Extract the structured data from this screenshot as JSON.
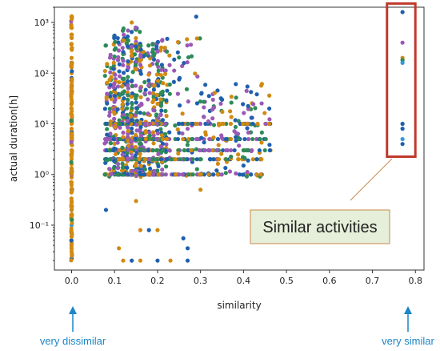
{
  "chart_data": {
    "type": "scatter",
    "xlabel": "similarity",
    "ylabel": "actual duration[h]",
    "xlim": [
      -0.04,
      0.82
    ],
    "ylim": [
      0.013,
      2000
    ],
    "yscale": "log",
    "grid": false,
    "x_ticks": [
      0.0,
      0.1,
      0.2,
      0.3,
      0.4,
      0.5,
      0.6,
      0.7,
      0.8
    ],
    "x_tick_labels": [
      "0.0",
      "0.1",
      "0.2",
      "0.3",
      "0.4",
      "0.5",
      "0.6",
      "0.7",
      "0.8"
    ],
    "y_ticks": [
      0.1,
      1,
      10,
      100,
      1000
    ],
    "y_tick_labels": [
      "10⁻¹",
      "10⁰",
      "10¹",
      "10²",
      "10³"
    ],
    "colors": [
      "#1f5fae",
      "#2e8b57",
      "#d18a12",
      "#9b59b6",
      "#c0392b",
      "#3498db",
      "#8b4513"
    ],
    "annotation": {
      "text": "Similar activities",
      "box_fill": "#e6efd9",
      "box_stroke": "#c8894a"
    },
    "highlight_box": {
      "x_range": [
        0.76,
        0.785
      ],
      "y_range": [
        2.6,
        2200
      ],
      "stroke": "#c0392b"
    },
    "left_label": "very dissimilar",
    "right_label": "very similar",
    "arrow_color": "#1c86c8",
    "series": [
      {
        "x": 0.0,
        "y": [
          0.022,
          0.03,
          0.05,
          0.07,
          0.1,
          0.15,
          0.2,
          0.3,
          0.5,
          0.7,
          1,
          1.3,
          1.6,
          2,
          2.5,
          3,
          4,
          5,
          6,
          7,
          8,
          10,
          12,
          15,
          20,
          25,
          30,
          40,
          50,
          60,
          80,
          100,
          130,
          160,
          200,
          300,
          500,
          800,
          1300
        ],
        "colors": [
          0,
          2,
          2,
          0,
          5,
          2,
          0,
          2,
          0,
          2,
          2,
          0,
          2,
          2,
          1,
          2,
          0,
          2,
          2,
          0,
          2,
          2,
          0,
          2,
          2,
          3,
          2,
          0,
          2,
          2,
          0,
          2,
          2,
          0,
          2,
          2,
          0,
          2,
          0
        ]
      },
      {
        "x": 0.77,
        "y": [
          1600,
          400,
          200,
          180,
          160,
          10,
          8,
          5,
          4
        ],
        "colors": [
          0,
          3,
          2,
          1,
          5,
          0,
          0,
          5,
          0
        ]
      }
    ],
    "cloud": {
      "x_range": [
        0.06,
        0.47
      ],
      "y_range": [
        0.5,
        1000
      ],
      "rows_y": [
        1,
        2,
        3,
        5,
        10
      ],
      "sparse_points": [
        [
          0.12,
          0.02
        ],
        [
          0.14,
          0.02
        ],
        [
          0.16,
          0.02
        ],
        [
          0.2,
          0.02
        ],
        [
          0.23,
          0.02
        ],
        [
          0.27,
          0.02
        ],
        [
          0.11,
          0.035
        ],
        [
          0.27,
          0.035
        ],
        [
          0.16,
          0.08
        ],
        [
          0.18,
          0.08
        ],
        [
          0.2,
          0.08
        ],
        [
          0.08,
          0.2
        ],
        [
          0.15,
          0.3
        ],
        [
          0.26,
          0.055
        ],
        [
          0.3,
          0.5
        ],
        [
          0.29,
          1300
        ],
        [
          0.14,
          1000
        ],
        [
          0.33,
          1
        ],
        [
          0.34,
          1
        ],
        [
          0.4,
          1.5
        ],
        [
          0.46,
          10
        ],
        [
          0.46,
          20
        ]
      ]
    }
  }
}
